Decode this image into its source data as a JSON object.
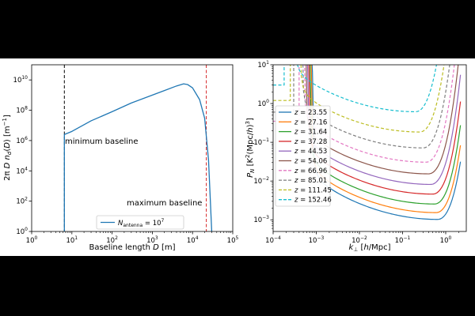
{
  "chart_data": [
    {
      "type": "line",
      "xlabel": "Baseline length D [m]",
      "ylabel": "2π D n_d(D) [m⁻¹]",
      "x_scale": "log",
      "y_scale": "log",
      "xlim": [
        1,
        100000
      ],
      "ylim": [
        1,
        100000000000.0
      ],
      "x_ticks": [
        {
          "v": 1,
          "b": "10",
          "e": "0"
        },
        {
          "v": 10,
          "b": "10",
          "e": "1"
        },
        {
          "v": 100,
          "b": "10",
          "e": "2"
        },
        {
          "v": 1000,
          "b": "10",
          "e": "3"
        },
        {
          "v": 10000,
          "b": "10",
          "e": "4"
        },
        {
          "v": 100000,
          "b": "10",
          "e": "5"
        }
      ],
      "y_ticks": [
        {
          "v": 1,
          "b": "10",
          "e": "0"
        },
        {
          "v": 100,
          "b": "10",
          "e": "2"
        },
        {
          "v": 10000.0,
          "b": "10",
          "e": "4"
        },
        {
          "v": 1000000.0,
          "b": "10",
          "e": "6"
        },
        {
          "v": 100000000.0,
          "b": "10",
          "e": "8"
        },
        {
          "v": 10000000000.0,
          "b": "10",
          "e": "10"
        }
      ],
      "series": [
        {
          "name": "N_antenna = 10^7",
          "legend_main": "N",
          "legend_sub": "antenna",
          "legend_rest": " = 10",
          "legend_sup": "7",
          "color": "#1f77b4",
          "points": [
            [
              6.5,
              1
            ],
            [
              6.5,
              2500000.0
            ],
            [
              10,
              4000000.0
            ],
            [
              30,
              20000000.0
            ],
            [
              100,
              80000000.0
            ],
            [
              300,
              300000000.0
            ],
            [
              1000,
              1000000000.0
            ],
            [
              2000,
              2000000000.0
            ],
            [
              4000,
              4000000000.0
            ],
            [
              6000,
              5500000000.0
            ],
            [
              7500,
              5000000000.0
            ],
            [
              10000,
              3000000000.0
            ],
            [
              15000,
              500000000.0
            ],
            [
              20000,
              30000000.0
            ],
            [
              25000,
              50000.0
            ],
            [
              30000,
              1
            ]
          ]
        }
      ],
      "vlines": [
        {
          "x": 6.5,
          "color": "#000000",
          "label": "minimum baseline"
        },
        {
          "x": 22000,
          "color": "#d62728",
          "label": "maximum baseline"
        }
      ],
      "legend_position": "bottom-center"
    },
    {
      "type": "line",
      "xlabel": "k⊥ [h/Mpc]",
      "ylabel": "P_N [K²(Mpc/h)³]",
      "x_scale": "log",
      "y_scale": "log",
      "xlim": [
        0.0001,
        3
      ],
      "ylim": [
        0.0005,
        10
      ],
      "x_ticks": [
        {
          "v": 0.0001,
          "b": "10",
          "e": "−4"
        },
        {
          "v": 0.001,
          "b": "10",
          "e": "−3"
        },
        {
          "v": 0.01,
          "b": "10",
          "e": "−2"
        },
        {
          "v": 0.1,
          "b": "10",
          "e": "−1"
        },
        {
          "v": 1,
          "b": "10",
          "e": "0"
        }
      ],
      "y_ticks": [
        {
          "v": 0.001,
          "b": "10",
          "e": "−3"
        },
        {
          "v": 0.01,
          "b": "10",
          "e": "−2"
        },
        {
          "v": 0.1,
          "b": "10",
          "e": "−1"
        },
        {
          "v": 1,
          "b": "10",
          "e": "0"
        },
        {
          "v": 10,
          "b": "10",
          "e": "1"
        }
      ],
      "series": [
        {
          "name": "z = 23.55",
          "z": "23.55",
          "color": "#1f77b4",
          "dash": false,
          "min_k": 0.65,
          "min_p": 0.001,
          "left_k": 0.0008
        },
        {
          "name": "z = 27.16",
          "z": "27.16",
          "color": "#ff7f0e",
          "dash": false,
          "min_k": 0.6,
          "min_p": 0.0015,
          "left_k": 0.00075
        },
        {
          "name": "z = 31.64",
          "z": "31.64",
          "color": "#2ca02c",
          "dash": false,
          "min_k": 0.55,
          "min_p": 0.0025,
          "left_k": 0.0007
        },
        {
          "name": "z = 37.28",
          "z": "37.28",
          "color": "#d62728",
          "dash": false,
          "min_k": 0.5,
          "min_p": 0.0045,
          "left_k": 0.00065
        },
        {
          "name": "z = 44.53",
          "z": "44.53",
          "color": "#9467bd",
          "dash": false,
          "min_k": 0.45,
          "min_p": 0.008,
          "left_k": 0.0006
        },
        {
          "name": "z = 54.06",
          "z": "54.06",
          "color": "#8c564b",
          "dash": false,
          "min_k": 0.4,
          "min_p": 0.015,
          "left_k": 0.00055
        },
        {
          "name": "z = 66.96",
          "z": "66.96",
          "color": "#e377c2",
          "dash": true,
          "min_k": 0.35,
          "min_p": 0.03,
          "left_k": 0.0005,
          "plateau": 0.35,
          "plateau_k": 0.0004
        },
        {
          "name": "z = 85.01",
          "z": "85.01",
          "color": "#7f7f7f",
          "dash": true,
          "min_k": 0.3,
          "min_p": 0.07,
          "left_k": 0.00045,
          "plateau": 0.6,
          "plateau_k": 0.0003
        },
        {
          "name": "z = 111.45",
          "z": "111.45",
          "color": "#bcbd22",
          "dash": true,
          "min_k": 0.25,
          "min_p": 0.18,
          "left_k": 0.0004,
          "plateau": 1.2,
          "plateau_k": 0.00025
        },
        {
          "name": "z = 152.46",
          "z": "152.46",
          "color": "#17becf",
          "dash": true,
          "min_k": 0.2,
          "min_p": 0.6,
          "left_k": 0.0003,
          "plateau": 3.0,
          "plateau_k": 0.00018
        }
      ],
      "legend_position": "left"
    }
  ]
}
